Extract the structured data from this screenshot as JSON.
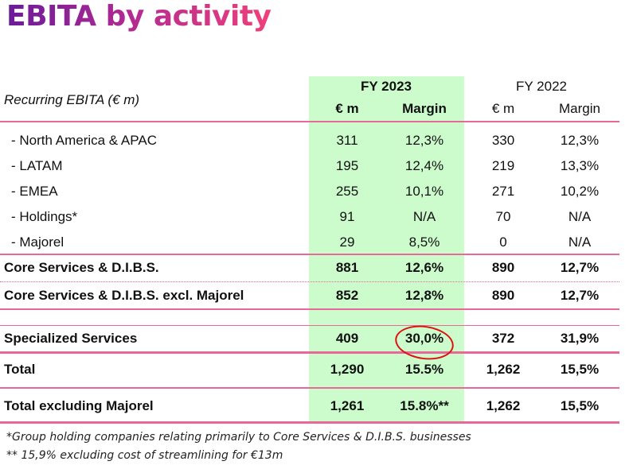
{
  "title": "EBITA by activity",
  "header": {
    "row_label": "Recurring EBITA (€ m)",
    "fy2023": "FY 2023",
    "fy2022": "FY 2022",
    "em": "€ m",
    "margin": "Margin"
  },
  "rows": [
    {
      "label": "- North America & APAC",
      "em23": "311",
      "m23": "12,3%",
      "em22": "330",
      "m22": "12,3%"
    },
    {
      "label": "- LATAM",
      "em23": "195",
      "m23": "12,4%",
      "em22": "219",
      "m22": "13,3%"
    },
    {
      "label": "- EMEA",
      "em23": "255",
      "m23": "10,1%",
      "em22": "271",
      "m22": "10,2%"
    },
    {
      "label": "- Holdings*",
      "em23": "91",
      "m23": "N/A",
      "em22": "70",
      "m22": "N/A"
    },
    {
      "label": "- Majorel",
      "em23": "29",
      "m23": "8,5%",
      "em22": "0",
      "m22": "N/A"
    },
    {
      "label": "Core Services & D.I.B.S.",
      "em23": "881",
      "m23": "12,6%",
      "em22": "890",
      "m22": "12,7%"
    },
    {
      "label": "Core Services & D.I.B.S. excl. Majorel",
      "em23": "852",
      "m23": "12,8%",
      "em22": "890",
      "m22": "12,7%"
    },
    {
      "label": "Specialized Services",
      "em23": "409",
      "m23": "30,0%",
      "em22": "372",
      "m22": "31,9%"
    },
    {
      "label": "Total",
      "em23": "1,290",
      "m23": "15.5%",
      "em22": "1,262",
      "m22": "15,5%"
    },
    {
      "label": "Total excluding Majorel",
      "em23": "1,261",
      "m23": "15.8%**",
      "em22": "1,262",
      "m22": "15,5%"
    }
  ],
  "footnotes": [
    "*Group holding companies relating primarily to Core Services & D.I.B.S. businesses",
    "** 15,9% excluding cost of streamlining for €13m"
  ]
}
